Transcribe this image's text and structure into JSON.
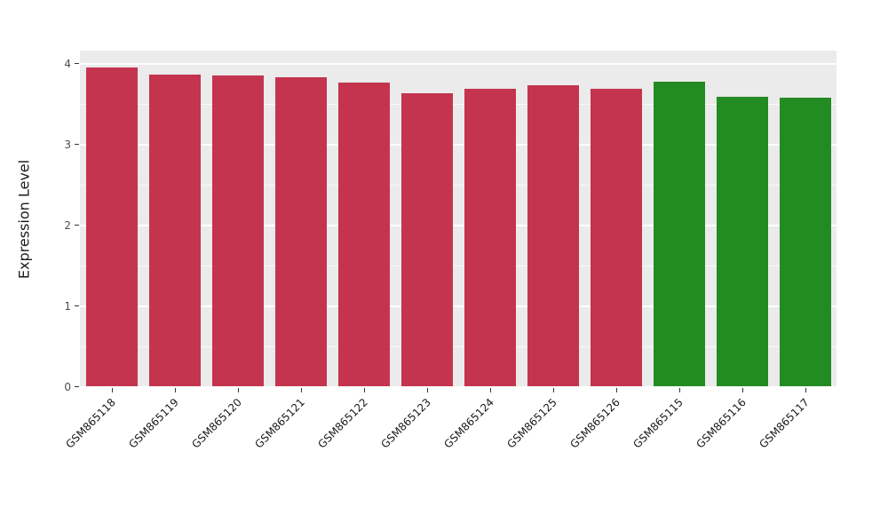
{
  "chart_data": {
    "type": "bar",
    "title": "",
    "xlabel": "",
    "ylabel": "Expression Level",
    "ylim": [
      0,
      4
    ],
    "yticks": [
      0,
      1,
      2,
      3,
      4
    ],
    "grid": {
      "on": true,
      "major_step": 1,
      "minor_step": 0.5,
      "color": "#FFFFFF"
    },
    "legend": "none",
    "panel_bg": "#EBEBEB",
    "figure_bg": "#FFFFFF",
    "categories": [
      "GSM865118",
      "GSM865119",
      "GSM865120",
      "GSM865121",
      "GSM865122",
      "GSM865123",
      "GSM865124",
      "GSM865125",
      "GSM865126",
      "GSM865115",
      "GSM865116",
      "GSM865117"
    ],
    "values": [
      3.95,
      3.86,
      3.85,
      3.82,
      3.76,
      3.63,
      3.68,
      3.72,
      3.68,
      3.77,
      3.58,
      3.57
    ],
    "bar_colors": [
      "#C4344F",
      "#C4344F",
      "#C4344F",
      "#C4344F",
      "#C4344F",
      "#C4344F",
      "#C4344F",
      "#C4344F",
      "#C4344F",
      "#228B22",
      "#228B22",
      "#228B22"
    ],
    "palette": {
      "red_group": "#C4344F",
      "green_group": "#228B22"
    },
    "text_color": "#1a1a1a",
    "tick_color": "#333333"
  }
}
